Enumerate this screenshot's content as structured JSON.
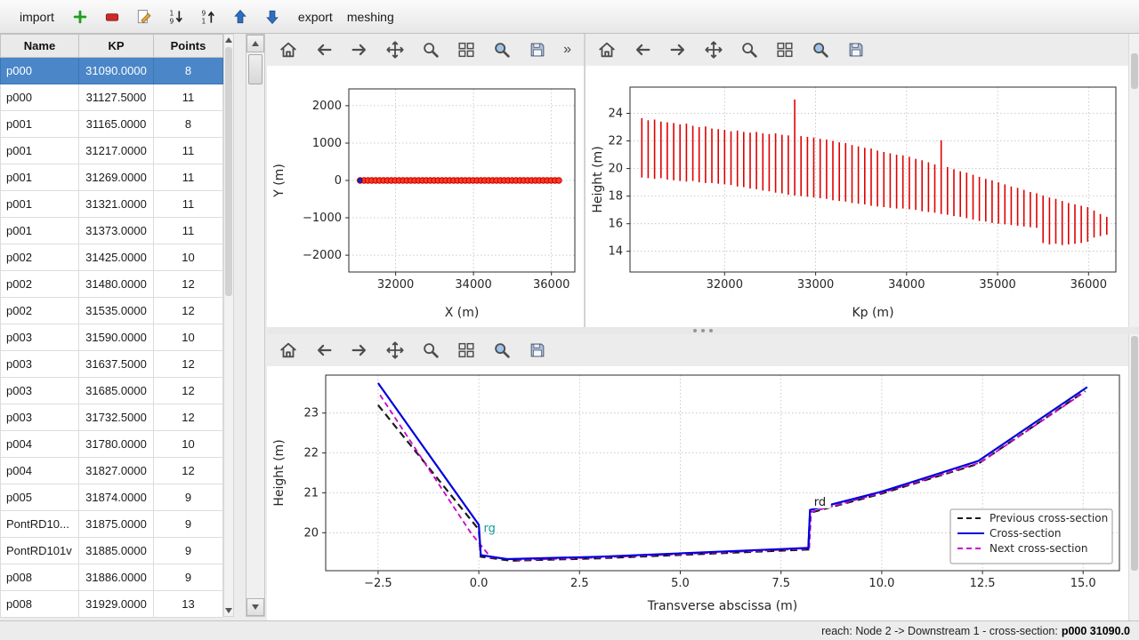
{
  "top_toolbar": {
    "import_label": "import",
    "export_label": "export",
    "meshing_label": "meshing",
    "icons": [
      {
        "name": "add-icon",
        "symbol": "i-add"
      },
      {
        "name": "remove-icon",
        "symbol": "i-remove"
      },
      {
        "name": "edit-icon",
        "symbol": "i-edit"
      },
      {
        "name": "sort-ascending-icon",
        "symbol": "i-sortasc"
      },
      {
        "name": "sort-descending-icon",
        "symbol": "i-sortdesc"
      },
      {
        "name": "move-up-icon",
        "symbol": "i-up"
      },
      {
        "name": "move-down-icon",
        "symbol": "i-down"
      }
    ]
  },
  "plot_toolbars": {
    "overflow_chevron": "»",
    "icons": [
      {
        "name": "home-icon",
        "symbol": "i-home"
      },
      {
        "name": "back-icon",
        "symbol": "i-back"
      },
      {
        "name": "forward-icon",
        "symbol": "i-forward"
      },
      {
        "name": "pan-icon",
        "symbol": "i-pan"
      },
      {
        "name": "zoom-icon",
        "symbol": "i-zoom"
      },
      {
        "name": "subplots-icon",
        "symbol": "i-subplots"
      },
      {
        "name": "customize-icon",
        "symbol": "i-customize"
      },
      {
        "name": "save-icon",
        "symbol": "i-save"
      }
    ]
  },
  "table": {
    "columns": [
      "Name",
      "KP",
      "Points"
    ],
    "selected_index": 0,
    "rows": [
      {
        "name": "p000",
        "kp": "31090.0000",
        "points": "8"
      },
      {
        "name": "p000",
        "kp": "31127.5000",
        "points": "11"
      },
      {
        "name": "p001",
        "kp": "31165.0000",
        "points": "8"
      },
      {
        "name": "p001",
        "kp": "31217.0000",
        "points": "11"
      },
      {
        "name": "p001",
        "kp": "31269.0000",
        "points": "11"
      },
      {
        "name": "p001",
        "kp": "31321.0000",
        "points": "11"
      },
      {
        "name": "p001",
        "kp": "31373.0000",
        "points": "11"
      },
      {
        "name": "p002",
        "kp": "31425.0000",
        "points": "10"
      },
      {
        "name": "p002",
        "kp": "31480.0000",
        "points": "12"
      },
      {
        "name": "p002",
        "kp": "31535.0000",
        "points": "12"
      },
      {
        "name": "p003",
        "kp": "31590.0000",
        "points": "10"
      },
      {
        "name": "p003",
        "kp": "31637.5000",
        "points": "12"
      },
      {
        "name": "p003",
        "kp": "31685.0000",
        "points": "12"
      },
      {
        "name": "p003",
        "kp": "31732.5000",
        "points": "12"
      },
      {
        "name": "p004",
        "kp": "31780.0000",
        "points": "10"
      },
      {
        "name": "p004",
        "kp": "31827.0000",
        "points": "12"
      },
      {
        "name": "p005",
        "kp": "31874.0000",
        "points": "9"
      },
      {
        "name": "PontRD10...",
        "kp": "31875.0000",
        "points": "9"
      },
      {
        "name": "PontRD101v",
        "kp": "31885.0000",
        "points": "9"
      },
      {
        "name": "p008",
        "kp": "31886.0000",
        "points": "9"
      },
      {
        "name": "p008",
        "kp": "31929.0000",
        "points": "13"
      }
    ]
  },
  "status_bar": {
    "prefix": "reach: Node 2 -> Downstream 1 - cross-section:",
    "selection": "p000 31090.0"
  },
  "chart_data": [
    {
      "id": "plan",
      "type": "scatter",
      "xlabel": "X (m)",
      "ylabel": "Y (m)",
      "xlim": [
        30800,
        36600
      ],
      "ylim": [
        -2450,
        2450
      ],
      "xticks": [
        32000,
        34000,
        36000
      ],
      "xtick_labels": [
        "32000",
        "34000",
        "36000"
      ],
      "yticks": [
        -2000,
        -1000,
        0,
        1000,
        2000
      ],
      "ytick_labels": [
        "−2000",
        "−1000",
        "0",
        "1000",
        "2000"
      ],
      "grid": true,
      "layout": {
        "margins": {
          "l": 92,
          "r": 10,
          "t": 26,
          "b": 62
        }
      },
      "series": [
        {
          "name": "river-axis-line",
          "type": "line",
          "color": "#2929c8",
          "width": 1.2,
          "pts": [
            [
              31090,
              0
            ],
            [
              36190,
              0
            ]
          ]
        },
        {
          "name": "cross-section-markers",
          "type": "scatter",
          "fill": "#ff3b1e",
          "edge": "#c80000",
          "r": 3.2,
          "y_const": 0,
          "x": [
            31090,
            31190,
            31290,
            31390,
            31490,
            31590,
            31690,
            31790,
            31890,
            31990,
            32090,
            32190,
            32290,
            32390,
            32490,
            32590,
            32690,
            32790,
            32890,
            32990,
            33090,
            33190,
            33290,
            33390,
            33490,
            33590,
            33690,
            33790,
            33890,
            33990,
            34090,
            34190,
            34290,
            34390,
            34490,
            34590,
            34690,
            34790,
            34890,
            34990,
            35090,
            35190,
            35290,
            35390,
            35490,
            35590,
            35690,
            35790,
            35890,
            35990,
            36090,
            36190
          ]
        },
        {
          "name": "selected-cross-section-marker",
          "type": "scatter",
          "fill": "#2222cc",
          "edge": "#15158a",
          "r": 2.4,
          "y_const": 0,
          "x": [
            31090
          ]
        }
      ]
    },
    {
      "id": "long",
      "type": "bar",
      "xlabel": "Kp (m)",
      "ylabel": "Height (m)",
      "xlim": [
        30960,
        36300
      ],
      "ylim": [
        12.5,
        25.9
      ],
      "xticks": [
        32000,
        33000,
        34000,
        35000,
        36000
      ],
      "xtick_labels": [
        "32000",
        "33000",
        "34000",
        "35000",
        "36000"
      ],
      "yticks": [
        14,
        16,
        18,
        20,
        22,
        24
      ],
      "ytick_labels": [
        "14",
        "16",
        "18",
        "20",
        "22",
        "24"
      ],
      "grid": true,
      "layout": {
        "margins": {
          "l": 50,
          "r": 14,
          "t": 24,
          "b": 62
        }
      },
      "series": [
        {
          "name": "cross-section-extents",
          "type": "bars",
          "color": "#e00000",
          "width": 1.6,
          "x": [
            31090,
            31160,
            31230,
            31300,
            31370,
            31440,
            31510,
            31580,
            31650,
            31720,
            31790,
            31860,
            31930,
            32000,
            32070,
            32140,
            32210,
            32280,
            32350,
            32420,
            32490,
            32560,
            32630,
            32700,
            32770,
            32840,
            32910,
            32980,
            33050,
            33120,
            33190,
            33260,
            33330,
            33400,
            33470,
            33540,
            33610,
            33680,
            33750,
            33820,
            33890,
            33960,
            34030,
            34100,
            34170,
            34240,
            34310,
            34380,
            34450,
            34520,
            34590,
            34660,
            34730,
            34800,
            34870,
            34940,
            35010,
            35080,
            35150,
            35220,
            35290,
            35360,
            35430,
            35500,
            35570,
            35640,
            35710,
            35780,
            35850,
            35920,
            35990,
            36060,
            36130,
            36200
          ],
          "top": [
            23.65,
            23.5,
            23.55,
            23.4,
            23.35,
            23.3,
            23.2,
            23.25,
            23.1,
            23.0,
            23.05,
            22.9,
            22.85,
            22.8,
            22.7,
            22.75,
            22.65,
            22.6,
            22.65,
            22.55,
            22.5,
            22.55,
            22.45,
            22.4,
            25.0,
            22.35,
            22.3,
            22.25,
            22.15,
            22.1,
            22.0,
            21.9,
            21.85,
            21.7,
            21.6,
            21.5,
            21.45,
            21.3,
            21.2,
            21.1,
            21.0,
            20.95,
            20.85,
            20.7,
            20.6,
            20.45,
            20.3,
            22.05,
            20.1,
            19.95,
            19.8,
            19.7,
            19.55,
            19.4,
            19.25,
            19.15,
            19.0,
            18.85,
            18.7,
            18.6,
            18.45,
            18.3,
            18.2,
            18.05,
            17.9,
            17.8,
            17.65,
            17.5,
            17.4,
            17.3,
            17.2,
            16.95,
            16.7,
            16.5
          ],
          "bottom": [
            19.35,
            19.3,
            19.25,
            19.3,
            19.2,
            19.15,
            19.1,
            19.05,
            19.1,
            19.0,
            18.95,
            18.95,
            18.9,
            18.85,
            18.8,
            18.7,
            18.65,
            18.55,
            18.5,
            18.4,
            18.35,
            18.25,
            18.2,
            18.1,
            18.05,
            18.0,
            17.95,
            17.9,
            17.85,
            17.8,
            17.7,
            17.65,
            17.6,
            17.5,
            17.45,
            17.4,
            17.3,
            17.25,
            17.2,
            17.15,
            17.1,
            17.1,
            17.05,
            17.0,
            16.9,
            16.85,
            16.8,
            16.7,
            16.65,
            16.55,
            16.5,
            16.4,
            16.3,
            16.2,
            16.15,
            16.05,
            16.0,
            15.95,
            15.9,
            15.85,
            15.8,
            15.75,
            15.7,
            14.6,
            14.5,
            14.55,
            14.45,
            14.5,
            14.55,
            14.6,
            14.7,
            15.0,
            15.1,
            15.2
          ]
        }
      ]
    },
    {
      "id": "cross",
      "type": "line",
      "xlabel": "Transverse abscissa (m)",
      "ylabel": "Height (m)",
      "xlim": [
        -3.8,
        15.9
      ],
      "ylim": [
        19.05,
        23.95
      ],
      "xticks": [
        -2.5,
        0.0,
        2.5,
        5.0,
        7.5,
        10.0,
        12.5,
        15.0
      ],
      "xtick_labels": [
        "−2.5",
        "0.0",
        "2.5",
        "5.0",
        "7.5",
        "10.0",
        "12.5",
        "15.0"
      ],
      "yticks": [
        20,
        21,
        22,
        23
      ],
      "ytick_labels": [
        "20",
        "21",
        "22",
        "23"
      ],
      "grid": true,
      "layout": {
        "margins": {
          "l": 66,
          "r": 10,
          "t": 10,
          "b": 56
        }
      },
      "series": [
        {
          "name": "previous-cross-section-line",
          "type": "line",
          "color": "#1a1a1a",
          "width": 2.2,
          "dash": "8,5",
          "pts": [
            [
              -2.5,
              23.2
            ],
            [
              0.0,
              20.08
            ],
            [
              0.05,
              19.4
            ],
            [
              0.8,
              19.3
            ],
            [
              3.0,
              19.36
            ],
            [
              8.18,
              19.58
            ],
            [
              8.22,
              20.5
            ],
            [
              10.0,
              20.98
            ],
            [
              12.4,
              21.73
            ],
            [
              15.05,
              23.55
            ]
          ]
        },
        {
          "name": "next-cross-section-line",
          "type": "line",
          "color": "#cc00cc",
          "width": 1.8,
          "dash": "6,4",
          "pts": [
            [
              -2.45,
              23.45
            ],
            [
              -0.2,
              20.0
            ],
            [
              0.3,
              19.38
            ],
            [
              1.0,
              19.32
            ],
            [
              3.0,
              19.38
            ],
            [
              8.2,
              19.6
            ],
            [
              8.25,
              20.52
            ],
            [
              10.0,
              21.0
            ],
            [
              12.45,
              21.76
            ],
            [
              15.0,
              23.5
            ]
          ]
        },
        {
          "name": "cross-section-line",
          "type": "line",
          "color": "#0000dc",
          "width": 2.2,
          "pts": [
            [
              -2.5,
              23.75
            ],
            [
              0.0,
              20.2
            ],
            [
              0.05,
              19.44
            ],
            [
              0.7,
              19.34
            ],
            [
              3.0,
              19.4
            ],
            [
              8.18,
              19.62
            ],
            [
              8.22,
              20.57
            ],
            [
              10.0,
              21.03
            ],
            [
              12.4,
              21.8
            ],
            [
              15.1,
              23.65
            ]
          ]
        }
      ],
      "annotations": [
        {
          "x": 0.12,
          "y": 20.02,
          "text": "rg",
          "color": "#0f9b9b",
          "bg": false
        },
        {
          "x": 8.32,
          "y": 20.68,
          "text": "rd",
          "color": "#1a1a1a",
          "bg": true
        }
      ],
      "legend": {
        "position": "lower right",
        "entries": [
          {
            "label": "Previous cross-section",
            "color": "#1a1a1a",
            "dash": true
          },
          {
            "label": "Cross-section",
            "color": "#0000dc",
            "dash": false
          },
          {
            "label": "Next cross-section",
            "color": "#cc00cc",
            "dash": true
          }
        ]
      }
    }
  ]
}
